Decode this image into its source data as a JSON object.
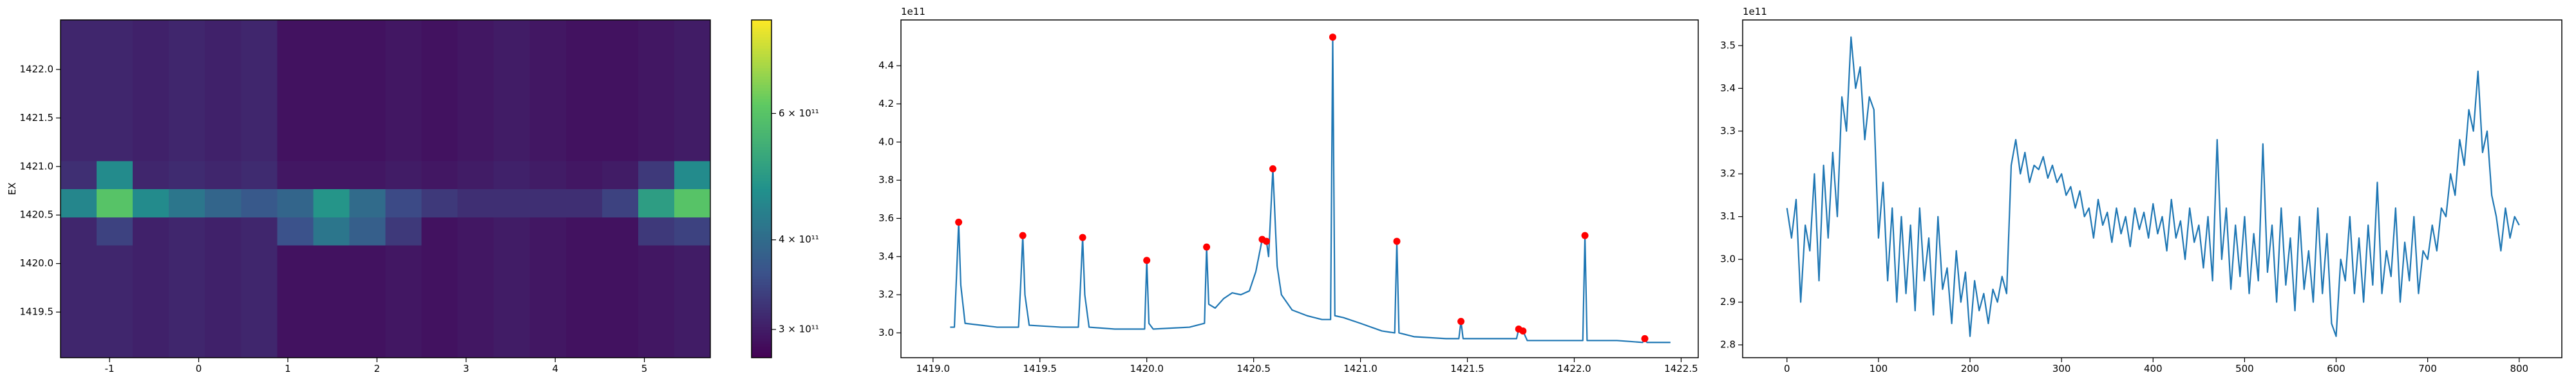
{
  "chart_data": [
    {
      "type": "heatmap",
      "ylabel": "EX",
      "xlim": [
        -1.55,
        5.74
      ],
      "ylim": [
        1419.03,
        1422.51
      ],
      "xticks": [
        -1,
        0,
        1,
        2,
        3,
        4,
        5
      ],
      "yticks": [
        1419.5,
        {
          "value": 1420,
          "label": "1420.0"
        },
        1420.5,
        {
          "value": 1421,
          "label": "1421.0"
        },
        1421.5,
        {
          "value": 1422,
          "label": "1422.0"
        }
      ],
      "colormap": "viridis",
      "log_color_scale": true,
      "clim": [
        274000000000.0,
        810000000000.0
      ],
      "cticks": [
        {
          "value": 300000000000.0,
          "label": "3 × 10¹¹"
        },
        {
          "value": 400000000000.0,
          "label": "4 × 10¹¹"
        },
        {
          "value": 600000000000.0,
          "label": "6 × 10¹¹"
        }
      ],
      "xbins": [
        -1.55,
        -1.145,
        -0.74,
        -0.335,
        0.07,
        0.475,
        0.88,
        1.285,
        1.69,
        2.095,
        2.5,
        2.905,
        3.31,
        3.715,
        4.12,
        4.525,
        4.93,
        5.335,
        5.74
      ],
      "ybins": [
        1419.03,
        1419.32,
        1419.61,
        1419.9,
        1420.19,
        1420.48,
        1420.77,
        1421.06,
        1421.35,
        1421.64,
        1421.93,
        1422.22,
        1422.51
      ],
      "z": [
        [
          310000000000.0,
          310000000000.0,
          305000000000.0,
          310000000000.0,
          305000000000.0,
          310000000000.0,
          290000000000.0,
          290000000000.0,
          290000000000.0,
          295000000000.0,
          290000000000.0,
          295000000000.0,
          300000000000.0,
          295000000000.0,
          290000000000.0,
          290000000000.0,
          295000000000.0,
          300000000000.0
        ],
        [
          310000000000.0,
          310000000000.0,
          305000000000.0,
          310000000000.0,
          305000000000.0,
          310000000000.0,
          290000000000.0,
          290000000000.0,
          290000000000.0,
          295000000000.0,
          290000000000.0,
          295000000000.0,
          300000000000.0,
          295000000000.0,
          290000000000.0,
          290000000000.0,
          295000000000.0,
          300000000000.0
        ],
        [
          310000000000.0,
          310000000000.0,
          305000000000.0,
          310000000000.0,
          305000000000.0,
          310000000000.0,
          290000000000.0,
          290000000000.0,
          290000000000.0,
          295000000000.0,
          290000000000.0,
          295000000000.0,
          300000000000.0,
          295000000000.0,
          290000000000.0,
          290000000000.0,
          295000000000.0,
          300000000000.0
        ],
        [
          310000000000.0,
          310000000000.0,
          305000000000.0,
          310000000000.0,
          305000000000.0,
          310000000000.0,
          290000000000.0,
          290000000000.0,
          290000000000.0,
          295000000000.0,
          290000000000.0,
          295000000000.0,
          300000000000.0,
          295000000000.0,
          290000000000.0,
          290000000000.0,
          295000000000.0,
          300000000000.0
        ],
        [
          310000000000.0,
          340000000000.0,
          305000000000.0,
          310000000000.0,
          305000000000.0,
          310000000000.0,
          360000000000.0,
          420000000000.0,
          380000000000.0,
          330000000000.0,
          290000000000.0,
          295000000000.0,
          300000000000.0,
          295000000000.0,
          290000000000.0,
          290000000000.0,
          330000000000.0,
          340000000000.0
        ],
        [
          450000000000.0,
          600000000000.0,
          460000000000.0,
          420000000000.0,
          390000000000.0,
          370000000000.0,
          390000000000.0,
          480000000000.0,
          400000000000.0,
          350000000000.0,
          330000000000.0,
          320000000000.0,
          320000000000.0,
          320000000000.0,
          320000000000.0,
          340000000000.0,
          500000000000.0,
          600000000000.0
        ],
        [
          320000000000.0,
          460000000000.0,
          310000000000.0,
          315000000000.0,
          310000000000.0,
          315000000000.0,
          295000000000.0,
          295000000000.0,
          295000000000.0,
          300000000000.0,
          295000000000.0,
          300000000000.0,
          305000000000.0,
          300000000000.0,
          295000000000.0,
          300000000000.0,
          330000000000.0,
          460000000000.0
        ],
        [
          310000000000.0,
          310000000000.0,
          305000000000.0,
          310000000000.0,
          305000000000.0,
          310000000000.0,
          290000000000.0,
          290000000000.0,
          290000000000.0,
          295000000000.0,
          290000000000.0,
          295000000000.0,
          300000000000.0,
          295000000000.0,
          290000000000.0,
          290000000000.0,
          295000000000.0,
          300000000000.0
        ],
        [
          310000000000.0,
          310000000000.0,
          305000000000.0,
          310000000000.0,
          305000000000.0,
          310000000000.0,
          290000000000.0,
          290000000000.0,
          290000000000.0,
          295000000000.0,
          290000000000.0,
          295000000000.0,
          300000000000.0,
          295000000000.0,
          290000000000.0,
          290000000000.0,
          295000000000.0,
          300000000000.0
        ],
        [
          310000000000.0,
          310000000000.0,
          305000000000.0,
          310000000000.0,
          305000000000.0,
          310000000000.0,
          290000000000.0,
          290000000000.0,
          290000000000.0,
          295000000000.0,
          290000000000.0,
          295000000000.0,
          300000000000.0,
          295000000000.0,
          290000000000.0,
          290000000000.0,
          295000000000.0,
          300000000000.0
        ],
        [
          310000000000.0,
          310000000000.0,
          305000000000.0,
          310000000000.0,
          305000000000.0,
          310000000000.0,
          290000000000.0,
          290000000000.0,
          290000000000.0,
          295000000000.0,
          290000000000.0,
          295000000000.0,
          300000000000.0,
          295000000000.0,
          290000000000.0,
          290000000000.0,
          295000000000.0,
          300000000000.0
        ],
        [
          310000000000.0,
          310000000000.0,
          305000000000.0,
          310000000000.0,
          305000000000.0,
          310000000000.0,
          290000000000.0,
          290000000000.0,
          290000000000.0,
          295000000000.0,
          290000000000.0,
          295000000000.0,
          300000000000.0,
          295000000000.0,
          290000000000.0,
          290000000000.0,
          295000000000.0,
          300000000000.0
        ]
      ]
    },
    {
      "type": "line",
      "y_offset_label": "1e11",
      "xlim": [
        1418.85,
        1422.58
      ],
      "ylim": [
        2.87,
        4.64
      ],
      "xticks": [
        {
          "value": 1419,
          "label": "1419.0"
        },
        1419.5,
        {
          "value": 1420,
          "label": "1420.0"
        },
        1420.5,
        {
          "value": 1421,
          "label": "1421.0"
        },
        1421.5,
        {
          "value": 1422,
          "label": "1422.0"
        },
        1422.5
      ],
      "yticks": [
        {
          "value": 3,
          "label": "3.0"
        },
        3.2,
        3.4,
        3.6,
        3.8,
        {
          "value": 4,
          "label": "4.0"
        },
        4.2,
        4.4
      ],
      "series": [
        {
          "color": "#1f77b4",
          "x": [
            1419.08,
            1419.1,
            1419.11,
            1419.12,
            1419.13,
            1419.15,
            1419.3,
            1419.4,
            1419.41,
            1419.42,
            1419.43,
            1419.45,
            1419.6,
            1419.68,
            1419.69,
            1419.7,
            1419.71,
            1419.73,
            1419.85,
            1419.99,
            1420.0,
            1420.01,
            1420.03,
            1420.2,
            1420.27,
            1420.28,
            1420.29,
            1420.32,
            1420.36,
            1420.4,
            1420.44,
            1420.48,
            1420.51,
            1420.54,
            1420.55,
            1420.56,
            1420.57,
            1420.59,
            1420.61,
            1420.63,
            1420.68,
            1420.75,
            1420.82,
            1420.86,
            1420.87,
            1420.88,
            1420.92,
            1421.0,
            1421.1,
            1421.16,
            1421.17,
            1421.18,
            1421.25,
            1421.4,
            1421.46,
            1421.47,
            1421.48,
            1421.6,
            1421.73,
            1421.74,
            1421.76,
            1421.78,
            1421.95,
            1422.04,
            1422.05,
            1422.06,
            1422.2,
            1422.32,
            1422.33,
            1422.34,
            1422.45
          ],
          "values": [
            3.03,
            3.03,
            3.3,
            3.58,
            3.25,
            3.05,
            3.03,
            3.03,
            3.25,
            3.51,
            3.2,
            3.04,
            3.03,
            3.03,
            3.25,
            3.5,
            3.2,
            3.03,
            3.02,
            3.02,
            3.38,
            3.05,
            3.02,
            3.03,
            3.05,
            3.45,
            3.15,
            3.13,
            3.18,
            3.21,
            3.2,
            3.22,
            3.32,
            3.49,
            3.47,
            3.48,
            3.4,
            3.86,
            3.35,
            3.2,
            3.12,
            3.09,
            3.07,
            3.07,
            4.55,
            3.09,
            3.08,
            3.05,
            3.01,
            3.0,
            3.48,
            3.0,
            2.98,
            2.97,
            2.97,
            3.06,
            2.97,
            2.97,
            2.97,
            3.02,
            3.01,
            2.96,
            2.96,
            2.96,
            3.51,
            2.96,
            2.96,
            2.95,
            2.97,
            2.95,
            2.95
          ]
        },
        {
          "type": "scatter",
          "color": "red",
          "x": [
            1419.12,
            1419.42,
            1419.7,
            1420.0,
            1420.28,
            1420.54,
            1420.56,
            1420.59,
            1420.87,
            1421.17,
            1421.47,
            1421.74,
            1421.76,
            1422.05,
            1422.33
          ],
          "values": [
            3.58,
            3.51,
            3.5,
            3.38,
            3.45,
            3.49,
            3.48,
            3.86,
            4.55,
            3.48,
            3.06,
            3.02,
            3.01,
            3.51,
            2.97
          ]
        }
      ]
    },
    {
      "type": "line",
      "y_offset_label": "1e11",
      "xlim": [
        -48.4,
        846.6
      ],
      "ylim": [
        2.77,
        3.56
      ],
      "xticks": [
        0,
        100,
        200,
        300,
        400,
        500,
        600,
        700,
        800
      ],
      "yticks": [
        2.8,
        2.9,
        {
          "value": 3,
          "label": "3.0"
        },
        3.1,
        3.2,
        3.3,
        3.4,
        3.5
      ],
      "series": [
        {
          "color": "#1f77b4",
          "x": [
            0,
            5,
            10,
            15,
            20,
            25,
            30,
            35,
            40,
            45,
            50,
            55,
            60,
            65,
            70,
            75,
            80,
            85,
            90,
            95,
            100,
            105,
            110,
            115,
            120,
            125,
            130,
            135,
            140,
            145,
            150,
            155,
            160,
            165,
            170,
            175,
            180,
            185,
            190,
            195,
            200,
            205,
            210,
            215,
            220,
            225,
            230,
            235,
            240,
            245,
            250,
            255,
            260,
            265,
            270,
            275,
            280,
            285,
            290,
            295,
            300,
            305,
            310,
            315,
            320,
            325,
            330,
            335,
            340,
            345,
            350,
            355,
            360,
            365,
            370,
            375,
            380,
            385,
            390,
            395,
            400,
            405,
            410,
            415,
            420,
            425,
            430,
            435,
            440,
            445,
            450,
            455,
            460,
            465,
            470,
            475,
            480,
            485,
            490,
            495,
            500,
            505,
            510,
            515,
            520,
            525,
            530,
            535,
            540,
            545,
            550,
            555,
            560,
            565,
            570,
            575,
            580,
            585,
            590,
            595,
            600,
            605,
            610,
            615,
            620,
            625,
            630,
            635,
            640,
            645,
            650,
            655,
            660,
            665,
            670,
            675,
            680,
            685,
            690,
            695,
            700,
            705,
            710,
            715,
            720,
            725,
            730,
            735,
            740,
            745,
            750,
            755,
            760,
            765,
            770,
            775,
            780,
            785,
            790,
            795,
            800
          ],
          "values": [
            3.12,
            3.05,
            3.14,
            2.9,
            3.08,
            3.02,
            3.2,
            2.95,
            3.22,
            3.05,
            3.25,
            3.1,
            3.38,
            3.3,
            3.52,
            3.4,
            3.45,
            3.28,
            3.38,
            3.35,
            3.05,
            3.18,
            2.95,
            3.12,
            2.9,
            3.1,
            2.92,
            3.08,
            2.88,
            3.12,
            2.95,
            3.05,
            2.87,
            3.1,
            2.93,
            2.98,
            2.85,
            3.02,
            2.9,
            2.97,
            2.82,
            2.95,
            2.88,
            2.92,
            2.85,
            2.93,
            2.9,
            2.96,
            2.92,
            3.22,
            3.28,
            3.2,
            3.25,
            3.18,
            3.22,
            3.21,
            3.24,
            3.19,
            3.22,
            3.18,
            3.2,
            3.15,
            3.17,
            3.12,
            3.16,
            3.1,
            3.12,
            3.05,
            3.14,
            3.08,
            3.11,
            3.04,
            3.12,
            3.06,
            3.1,
            3.03,
            3.12,
            3.07,
            3.11,
            3.05,
            3.13,
            3.06,
            3.1,
            3.02,
            3.14,
            3.05,
            3.09,
            3.0,
            3.12,
            3.04,
            3.08,
            2.98,
            3.1,
            2.95,
            3.28,
            3.0,
            3.12,
            2.93,
            3.08,
            2.96,
            3.1,
            2.92,
            3.06,
            2.95,
            3.27,
            2.97,
            3.08,
            2.9,
            3.12,
            2.94,
            3.05,
            2.88,
            3.1,
            2.93,
            3.02,
            2.9,
            3.12,
            2.92,
            3.06,
            2.85,
            2.82,
            3.0,
            2.95,
            3.1,
            2.92,
            3.05,
            2.9,
            3.08,
            2.94,
            3.18,
            2.92,
            3.02,
            2.96,
            3.12,
            2.9,
            3.04,
            2.95,
            3.1,
            2.92,
            3.02,
            3.0,
            3.08,
            3.02,
            3.12,
            3.1,
            3.2,
            3.15,
            3.28,
            3.22,
            3.35,
            3.3,
            3.44,
            3.25,
            3.3,
            3.15,
            3.1,
            3.02,
            3.12,
            3.05,
            3.1,
            3.08
          ]
        }
      ]
    }
  ]
}
